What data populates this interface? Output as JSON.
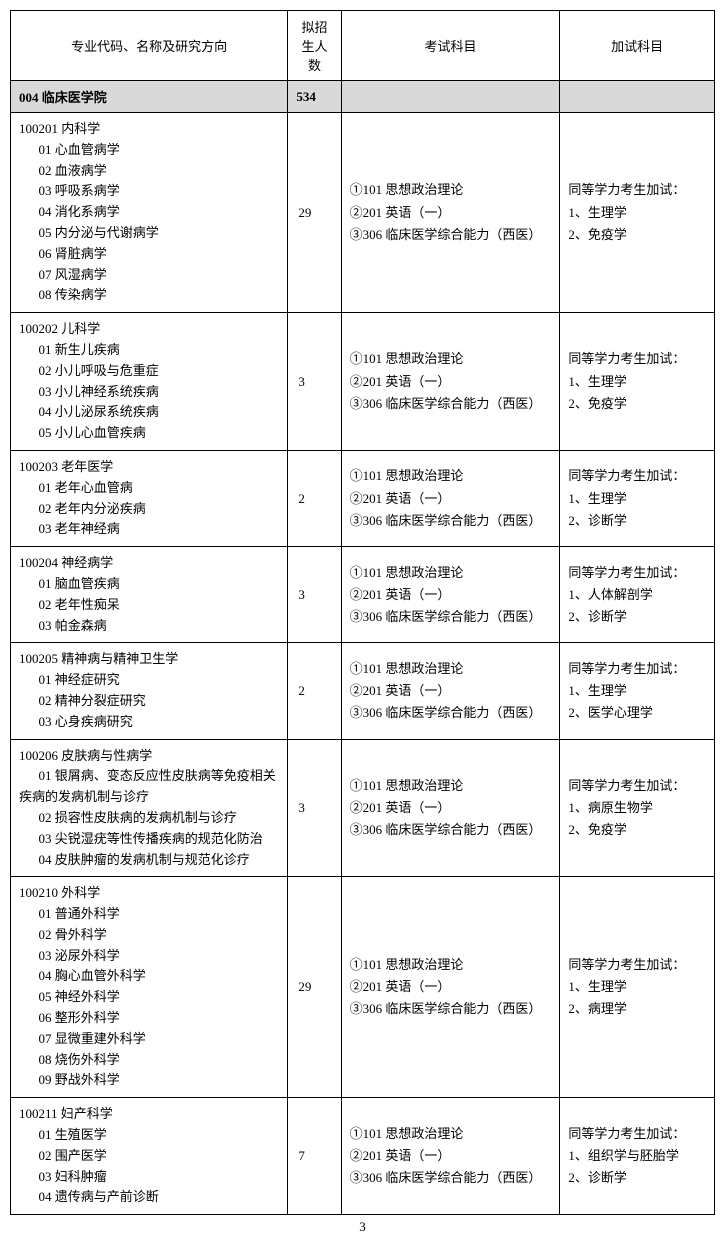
{
  "headers": {
    "major": "专业代码、名称及研究方向",
    "count": "拟招生人数",
    "exam": "考试科目",
    "extra": "加试科目"
  },
  "department": {
    "name": "004 临床医学院",
    "count": "534"
  },
  "rows": [
    {
      "major_title": "100201 内科学",
      "directions": [
        "01 心血管病学",
        "02 血液病学",
        "03 呼吸系病学",
        "04 消化系病学",
        "05 内分泌与代谢病学",
        "06 肾脏病学",
        "07 风湿病学",
        "08 传染病学"
      ],
      "count": "29",
      "exam": [
        "①101 思想政治理论",
        "②201 英语（一）",
        "③306 临床医学综合能力（西医）"
      ],
      "extra": [
        "同等学力考生加试：",
        "1、生理学",
        "2、免疫学"
      ]
    },
    {
      "major_title": "100202 儿科学",
      "directions": [
        "01 新生儿疾病",
        "02 小儿呼吸与危重症",
        "03 小儿神经系统疾病",
        "04 小儿泌尿系统疾病",
        "05 小儿心血管疾病"
      ],
      "count": "3",
      "exam": [
        "①101 思想政治理论",
        "②201 英语（一）",
        "③306 临床医学综合能力（西医）"
      ],
      "extra": [
        "同等学力考生加试：",
        "1、生理学",
        "2、免疫学"
      ]
    },
    {
      "major_title": "100203 老年医学",
      "directions": [
        "01 老年心血管病",
        "02 老年内分泌疾病",
        "03 老年神经病"
      ],
      "count": "2",
      "exam": [
        "①101 思想政治理论",
        "②201 英语（一）",
        "③306 临床医学综合能力（西医）"
      ],
      "extra": [
        "同等学力考生加试：",
        "1、生理学",
        "2、诊断学"
      ]
    },
    {
      "major_title": "100204 神经病学",
      "directions": [
        "01 脑血管疾病",
        "02 老年性痴呆",
        "03 帕金森病"
      ],
      "count": "3",
      "exam": [
        "①101 思想政治理论",
        "②201 英语（一）",
        "③306 临床医学综合能力（西医）"
      ],
      "extra": [
        "同等学力考生加试：",
        "1、人体解剖学",
        "2、诊断学"
      ]
    },
    {
      "major_title": "100205 精神病与精神卫生学",
      "directions": [
        "01 神经症研究",
        "02 精神分裂症研究",
        "03 心身疾病研究"
      ],
      "count": "2",
      "exam": [
        "①101 思想政治理论",
        "②201 英语（一）",
        "③306 临床医学综合能力（西医）"
      ],
      "extra": [
        "同等学力考生加试：",
        "1、生理学",
        "2、医学心理学"
      ]
    },
    {
      "major_title": "100206 皮肤病与性病学",
      "directions_html": "<span class=\"direction\">01 银屑病、变态反应性皮肤病等免疫相关</span><span class=\"indent-cont\">疾病的发病机制与诊疗</span><span class=\"direction\">02 损容性皮肤病的发病机制与诊疗</span><span class=\"direction\">03 尖锐湿疣等性传播疾病的规范化防治</span><span class=\"direction\">04 皮肤肿瘤的发病机制与规范化诊疗</span>",
      "count": "3",
      "exam": [
        "①101 思想政治理论",
        "②201 英语（一）",
        "③306 临床医学综合能力（西医）"
      ],
      "extra": [
        "同等学力考生加试：",
        "1、病原生物学",
        "2、免疫学"
      ]
    },
    {
      "major_title": "100210 外科学",
      "directions": [
        "01 普通外科学",
        "02 骨外科学",
        "03 泌尿外科学",
        "04 胸心血管外科学",
        "05 神经外科学",
        "06 整形外科学",
        "07 显微重建外科学",
        "08 烧伤外科学",
        "09 野战外科学"
      ],
      "count": "29",
      "exam": [
        "①101 思想政治理论",
        "②201 英语（一）",
        "③306 临床医学综合能力（西医）"
      ],
      "extra": [
        "同等学力考生加试：",
        "1、生理学",
        "2、病理学"
      ]
    },
    {
      "major_title": "100211 妇产科学",
      "directions": [
        "01 生殖医学",
        "02 围产医学",
        "03 妇科肿瘤",
        "04 遗传病与产前诊断"
      ],
      "count": "7",
      "exam": [
        "①101 思想政治理论",
        "②201 英语（一）",
        "③306 临床医学综合能力（西医）"
      ],
      "extra": [
        "同等学力考生加试：",
        "1、组织学与胚胎学",
        "2、诊断学"
      ]
    }
  ],
  "page_number": "3"
}
